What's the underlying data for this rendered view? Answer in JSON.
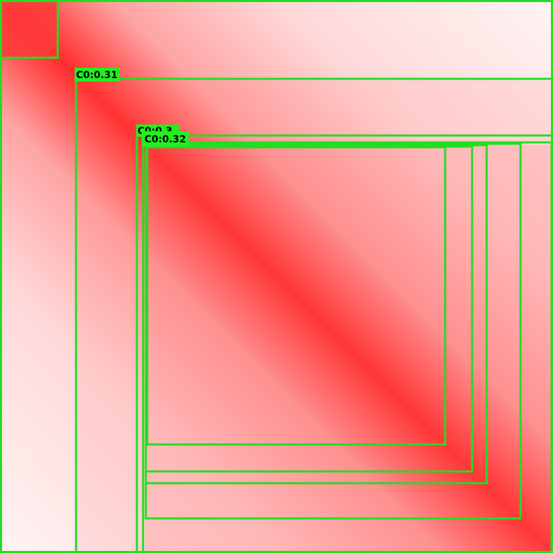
{
  "detections": {
    "labels": [
      "C0:0.31",
      "C0:0.3",
      "C0:0.32"
    ]
  }
}
